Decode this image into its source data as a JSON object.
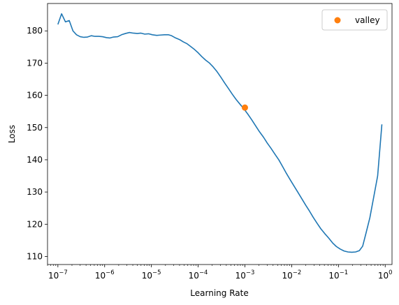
{
  "chart_data": {
    "type": "line",
    "xlabel": "Learning Rate",
    "ylabel": "Loss",
    "xscale": "log",
    "xlim": [
      6e-08,
      1.4
    ],
    "ylim": [
      107.5,
      188.5
    ],
    "x_ticks": [
      {
        "exp": "-7",
        "value": 1e-07
      },
      {
        "exp": "-6",
        "value": 1e-06
      },
      {
        "exp": "-5",
        "value": 1e-05
      },
      {
        "exp": "-4",
        "value": 0.0001
      },
      {
        "exp": "-3",
        "value": 0.001
      },
      {
        "exp": "-2",
        "value": 0.01
      },
      {
        "exp": "-1",
        "value": 0.1
      },
      {
        "exp": "0",
        "value": 1
      }
    ],
    "x_base": "10",
    "y_ticks": [
      110,
      120,
      130,
      140,
      150,
      160,
      170,
      180
    ],
    "grid": false,
    "legend_position": "top-right",
    "series": [
      {
        "color": "#1f77b4",
        "points": [
          [
            1e-07,
            182.0
          ],
          [
            1.2e-07,
            185.3
          ],
          [
            1.45e-07,
            182.8
          ],
          [
            1.75e-07,
            183.2
          ],
          [
            2.1e-07,
            180.0
          ],
          [
            2.5e-07,
            178.8
          ],
          [
            3e-07,
            178.2
          ],
          [
            3.6e-07,
            178.0
          ],
          [
            4.3e-07,
            178.1
          ],
          [
            5.2e-07,
            178.5
          ],
          [
            6.2e-07,
            178.3
          ],
          [
            7.5e-07,
            178.3
          ],
          [
            9e-07,
            178.2
          ],
          [
            1.1e-06,
            177.9
          ],
          [
            1.3e-06,
            177.8
          ],
          [
            1.55e-06,
            178.1
          ],
          [
            1.9e-06,
            178.2
          ],
          [
            2.3e-06,
            178.8
          ],
          [
            2.8e-06,
            179.2
          ],
          [
            3.4e-06,
            179.5
          ],
          [
            4.1e-06,
            179.3
          ],
          [
            5e-06,
            179.2
          ],
          [
            6e-06,
            179.3
          ],
          [
            7.2e-06,
            179.0
          ],
          [
            8.7e-06,
            179.1
          ],
          [
            1.05e-05,
            178.8
          ],
          [
            1.3e-05,
            178.6
          ],
          [
            1.55e-05,
            178.7
          ],
          [
            1.9e-05,
            178.8
          ],
          [
            2.3e-05,
            178.8
          ],
          [
            2.7e-05,
            178.5
          ],
          [
            3.3e-05,
            177.8
          ],
          [
            4e-05,
            177.3
          ],
          [
            4.8e-05,
            176.6
          ],
          [
            5.8e-05,
            176.0
          ],
          [
            7e-05,
            175.1
          ],
          [
            8.4e-05,
            174.2
          ],
          [
            0.0001,
            173.2
          ],
          [
            0.00012,
            172.0
          ],
          [
            0.000145,
            170.9
          ],
          [
            0.000175,
            170.0
          ],
          [
            0.00021,
            168.8
          ],
          [
            0.000255,
            167.3
          ],
          [
            0.00031,
            165.5
          ],
          [
            0.00037,
            163.8
          ],
          [
            0.00045,
            162.0
          ],
          [
            0.00054,
            160.3
          ],
          [
            0.00065,
            158.7
          ],
          [
            0.00078,
            157.3
          ],
          [
            0.00094,
            155.9
          ],
          [
            0.00115,
            154.2
          ],
          [
            0.0014,
            152.4
          ],
          [
            0.0017,
            150.5
          ],
          [
            0.00205,
            148.7
          ],
          [
            0.0025,
            147.0
          ],
          [
            0.003,
            145.2
          ],
          [
            0.0036,
            143.6
          ],
          [
            0.0044,
            141.7
          ],
          [
            0.0053,
            140.0
          ],
          [
            0.0064,
            137.9
          ],
          [
            0.0077,
            135.8
          ],
          [
            0.0093,
            133.8
          ],
          [
            0.0113,
            131.8
          ],
          [
            0.0136,
            129.9
          ],
          [
            0.0165,
            127.9
          ],
          [
            0.02,
            125.9
          ],
          [
            0.024,
            124.1
          ],
          [
            0.029,
            122.1
          ],
          [
            0.035,
            120.3
          ],
          [
            0.042,
            118.6
          ],
          [
            0.051,
            117.1
          ],
          [
            0.062,
            115.7
          ],
          [
            0.075,
            114.2
          ],
          [
            0.09,
            113.1
          ],
          [
            0.109,
            112.3
          ],
          [
            0.132,
            111.7
          ],
          [
            0.16,
            111.4
          ],
          [
            0.193,
            111.3
          ],
          [
            0.233,
            111.4
          ],
          [
            0.28,
            111.8
          ],
          [
            0.33,
            113.2
          ],
          [
            0.39,
            117.3
          ],
          [
            0.47,
            122.0
          ],
          [
            0.57,
            128.5
          ],
          [
            0.69,
            135.0
          ],
          [
            0.85,
            151.0
          ]
        ]
      }
    ],
    "markers": [
      {
        "label": "valley",
        "x": 0.001,
        "y": 156.2,
        "color": "#ff7f0e"
      }
    ]
  }
}
